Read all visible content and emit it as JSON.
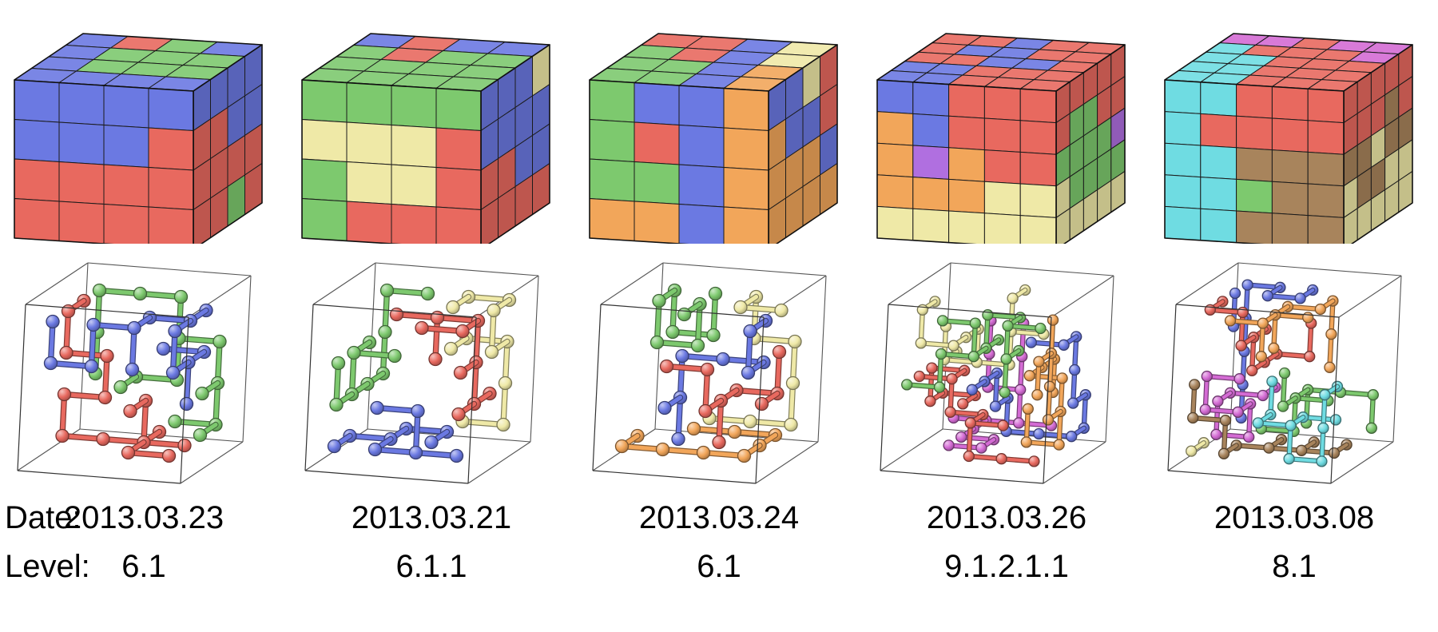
{
  "figure": {
    "labels": {
      "date_prefix": "Date:",
      "level_prefix": "Level:"
    },
    "palette": {
      "blue": "#6b79e2",
      "green": "#7dc96e",
      "red": "#e8695f",
      "yellow": "#efe9a7",
      "orange": "#f2a65a",
      "purple": "#b06fe0",
      "magenta": "#d46bd4",
      "cyan": "#6fdce2",
      "brown": "#a8845c"
    },
    "columns": [
      {
        "date": "2013.03.23",
        "level": "6.1",
        "grid": 4,
        "faces": {
          "top": [
            [
              "blue",
              "red",
              "green",
              "blue"
            ],
            [
              "blue",
              "green",
              "green",
              "green"
            ],
            [
              "blue",
              "green",
              "green",
              "green"
            ],
            [
              "blue",
              "blue",
              "blue",
              "blue"
            ]
          ],
          "front": [
            [
              "blue",
              "blue",
              "blue",
              "blue"
            ],
            [
              "blue",
              "blue",
              "blue",
              "red"
            ],
            [
              "red",
              "red",
              "red",
              "red"
            ],
            [
              "red",
              "red",
              "red",
              "red"
            ]
          ],
          "right": [
            [
              "blue",
              "blue",
              "blue",
              "blue"
            ],
            [
              "red",
              "red",
              "blue",
              "blue"
            ],
            [
              "red",
              "red",
              "red",
              "red"
            ],
            [
              "red",
              "red",
              "green",
              "red"
            ]
          ]
        },
        "network_colors": [
          "blue",
          "green",
          "red"
        ]
      },
      {
        "date": "2013.03.21",
        "level": "6.1.1",
        "grid": 4,
        "faces": {
          "top": [
            [
              "blue",
              "red",
              "blue",
              "blue"
            ],
            [
              "green",
              "red",
              "green",
              "green"
            ],
            [
              "green",
              "green",
              "green",
              "green"
            ],
            [
              "green",
              "green",
              "green",
              "green"
            ]
          ],
          "front": [
            [
              "green",
              "green",
              "green",
              "green"
            ],
            [
              "yellow",
              "yellow",
              "yellow",
              "red"
            ],
            [
              "green",
              "yellow",
              "yellow",
              "red"
            ],
            [
              "green",
              "red",
              "red",
              "red"
            ]
          ],
          "right": [
            [
              "blue",
              "blue",
              "blue",
              "yellow"
            ],
            [
              "blue",
              "blue",
              "blue",
              "blue"
            ],
            [
              "red",
              "red",
              "blue",
              "blue"
            ],
            [
              "red",
              "red",
              "red",
              "red"
            ]
          ]
        },
        "network_colors": [
          "green",
          "yellow",
          "blue",
          "red"
        ]
      },
      {
        "date": "2013.03.24",
        "level": "6.1",
        "grid": 4,
        "faces": {
          "top": [
            [
              "red",
              "red",
              "blue",
              "yellow"
            ],
            [
              "green",
              "red",
              "blue",
              "yellow"
            ],
            [
              "green",
              "green",
              "blue",
              "orange"
            ],
            [
              "green",
              "green",
              "blue",
              "orange"
            ]
          ],
          "front": [
            [
              "green",
              "blue",
              "blue",
              "orange"
            ],
            [
              "green",
              "red",
              "blue",
              "orange"
            ],
            [
              "green",
              "green",
              "blue",
              "orange"
            ],
            [
              "orange",
              "orange",
              "blue",
              "orange"
            ]
          ],
          "right": [
            [
              "blue",
              "blue",
              "yellow",
              "red"
            ],
            [
              "orange",
              "blue",
              "blue",
              "red"
            ],
            [
              "orange",
              "orange",
              "orange",
              "blue"
            ],
            [
              "orange",
              "orange",
              "orange",
              "orange"
            ]
          ]
        },
        "network_colors": [
          "green",
          "red",
          "orange",
          "blue",
          "yellow"
        ]
      },
      {
        "date": "2013.03.26",
        "level": "9.1.2.1.1",
        "grid": 5,
        "faces": {
          "top": [
            [
              "red",
              "red",
              "blue",
              "red",
              "red"
            ],
            [
              "red",
              "blue",
              "blue",
              "red",
              "red"
            ],
            [
              "red",
              "red",
              "blue",
              "blue",
              "red"
            ],
            [
              "blue",
              "blue",
              "red",
              "red",
              "red"
            ],
            [
              "blue",
              "blue",
              "red",
              "red",
              "red"
            ]
          ],
          "front": [
            [
              "blue",
              "blue",
              "red",
              "red",
              "red"
            ],
            [
              "orange",
              "blue",
              "red",
              "red",
              "red"
            ],
            [
              "orange",
              "purple",
              "orange",
              "red",
              "red"
            ],
            [
              "orange",
              "orange",
              "orange",
              "yellow",
              "yellow"
            ],
            [
              "yellow",
              "yellow",
              "yellow",
              "yellow",
              "yellow"
            ]
          ],
          "right": [
            [
              "red",
              "red",
              "red",
              "red",
              "red"
            ],
            [
              "red",
              "green",
              "green",
              "red",
              "red"
            ],
            [
              "green",
              "green",
              "green",
              "green",
              "purple"
            ],
            [
              "yellow",
              "green",
              "green",
              "green",
              "green"
            ],
            [
              "yellow",
              "yellow",
              "yellow",
              "yellow",
              "yellow"
            ]
          ]
        },
        "network_colors": [
          "blue",
          "red",
          "orange",
          "magenta",
          "yellow",
          "green"
        ]
      },
      {
        "date": "2013.03.08",
        "level": "8.1",
        "grid": 5,
        "faces": {
          "top": [
            [
              "magenta",
              "magenta",
              "red",
              "magenta",
              "magenta"
            ],
            [
              "cyan",
              "red",
              "red",
              "red",
              "magenta"
            ],
            [
              "cyan",
              "cyan",
              "red",
              "red",
              "red"
            ],
            [
              "cyan",
              "cyan",
              "red",
              "red",
              "red"
            ],
            [
              "cyan",
              "cyan",
              "red",
              "red",
              "red"
            ]
          ],
          "front": [
            [
              "cyan",
              "cyan",
              "red",
              "red",
              "red"
            ],
            [
              "cyan",
              "red",
              "red",
              "red",
              "red"
            ],
            [
              "cyan",
              "cyan",
              "brown",
              "brown",
              "brown"
            ],
            [
              "cyan",
              "cyan",
              "green",
              "brown",
              "brown"
            ],
            [
              "cyan",
              "cyan",
              "brown",
              "brown",
              "brown"
            ]
          ],
          "right": [
            [
              "red",
              "red",
              "red",
              "red",
              "red"
            ],
            [
              "red",
              "red",
              "red",
              "brown",
              "red"
            ],
            [
              "brown",
              "brown",
              "yellow",
              "brown",
              "brown"
            ],
            [
              "yellow",
              "brown",
              "brown",
              "yellow",
              "yellow"
            ],
            [
              "yellow",
              "yellow",
              "yellow",
              "yellow",
              "yellow"
            ]
          ]
        },
        "network_colors": [
          "cyan",
          "magenta",
          "red",
          "orange",
          "blue",
          "brown",
          "yellow",
          "green"
        ]
      }
    ]
  }
}
